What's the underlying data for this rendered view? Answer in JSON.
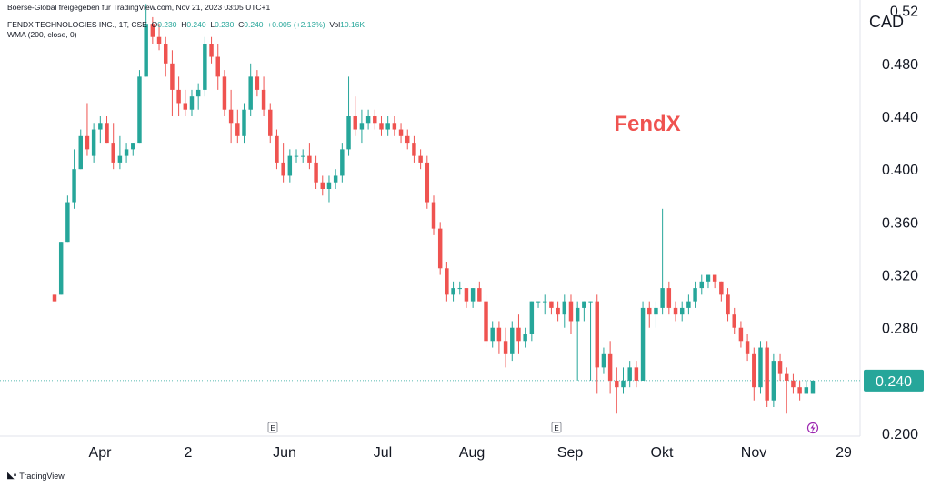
{
  "header": {
    "source": "Boerse-Global freigegeben für TradingView.com, Nov 21, 2023 03:05 UTC+1",
    "symbol": "FENDX TECHNOLOGIES INC., 1T, CSE",
    "open_label": "O",
    "open": "0.230",
    "high_label": "H",
    "high": "0.240",
    "low_label": "L",
    "low": "0.230",
    "close_label": "C",
    "close": "0.240",
    "change": "+0.005 (+2.13%)",
    "vol_label": "Vol",
    "vol": "10.16K",
    "indicator": "WMA (200, close, 0)"
  },
  "currency": "CAD",
  "brand": "TradingView",
  "colors": {
    "up": "#26a69a",
    "down": "#ef5350",
    "last_price_bg": "#26a69a",
    "watermark": "#ef5350"
  },
  "chart_data": {
    "type": "candlestick",
    "watermark": "FendX",
    "ylim": [
      0.198,
      0.528
    ],
    "y_ticks": [
      "0.200",
      "0.240",
      "0.280",
      "0.320",
      "0.360",
      "0.400",
      "0.440",
      "0.480",
      "0.52"
    ],
    "x_tick_labels": [
      "Apr",
      "2",
      "Jun",
      "Jul",
      "Aug",
      "Sep",
      "Okt",
      "Nov",
      "29"
    ],
    "last_price": "0.240",
    "event_markers": [
      "E",
      "E"
    ],
    "candles": [
      [
        0.305,
        0.305,
        0.3,
        0.3
      ],
      [
        0.305,
        0.345,
        0.305,
        0.345
      ],
      [
        0.345,
        0.38,
        0.345,
        0.375
      ],
      [
        0.375,
        0.415,
        0.37,
        0.4
      ],
      [
        0.4,
        0.43,
        0.4,
        0.425
      ],
      [
        0.425,
        0.45,
        0.41,
        0.415
      ],
      [
        0.41,
        0.435,
        0.405,
        0.43
      ],
      [
        0.43,
        0.44,
        0.42,
        0.435
      ],
      [
        0.435,
        0.44,
        0.42,
        0.42
      ],
      [
        0.42,
        0.435,
        0.4,
        0.405
      ],
      [
        0.405,
        0.425,
        0.4,
        0.41
      ],
      [
        0.41,
        0.42,
        0.405,
        0.415
      ],
      [
        0.415,
        0.42,
        0.41,
        0.42
      ],
      [
        0.42,
        0.475,
        0.42,
        0.47
      ],
      [
        0.47,
        0.525,
        0.47,
        0.51
      ],
      [
        0.51,
        0.515,
        0.495,
        0.5
      ],
      [
        0.5,
        0.51,
        0.49,
        0.495
      ],
      [
        0.495,
        0.5,
        0.47,
        0.48
      ],
      [
        0.48,
        0.49,
        0.44,
        0.46
      ],
      [
        0.46,
        0.47,
        0.44,
        0.45
      ],
      [
        0.45,
        0.46,
        0.44,
        0.445
      ],
      [
        0.445,
        0.46,
        0.44,
        0.455
      ],
      [
        0.455,
        0.465,
        0.445,
        0.46
      ],
      [
        0.46,
        0.5,
        0.455,
        0.495
      ],
      [
        0.495,
        0.5,
        0.48,
        0.485
      ],
      [
        0.485,
        0.495,
        0.46,
        0.47
      ],
      [
        0.47,
        0.475,
        0.44,
        0.445
      ],
      [
        0.445,
        0.46,
        0.42,
        0.435
      ],
      [
        0.435,
        0.445,
        0.42,
        0.425
      ],
      [
        0.425,
        0.45,
        0.42,
        0.445
      ],
      [
        0.445,
        0.48,
        0.44,
        0.47
      ],
      [
        0.47,
        0.475,
        0.455,
        0.46
      ],
      [
        0.46,
        0.47,
        0.44,
        0.445
      ],
      [
        0.445,
        0.45,
        0.42,
        0.425
      ],
      [
        0.425,
        0.43,
        0.4,
        0.405
      ],
      [
        0.405,
        0.42,
        0.39,
        0.395
      ],
      [
        0.395,
        0.415,
        0.39,
        0.41
      ],
      [
        0.41,
        0.415,
        0.405,
        0.41
      ],
      [
        0.41,
        0.415,
        0.405,
        0.41
      ],
      [
        0.41,
        0.42,
        0.4,
        0.405
      ],
      [
        0.405,
        0.41,
        0.385,
        0.39
      ],
      [
        0.39,
        0.395,
        0.38,
        0.385
      ],
      [
        0.385,
        0.395,
        0.375,
        0.39
      ],
      [
        0.39,
        0.4,
        0.385,
        0.395
      ],
      [
        0.395,
        0.42,
        0.39,
        0.415
      ],
      [
        0.415,
        0.47,
        0.41,
        0.44
      ],
      [
        0.44,
        0.455,
        0.425,
        0.43
      ],
      [
        0.43,
        0.445,
        0.42,
        0.435
      ],
      [
        0.435,
        0.445,
        0.43,
        0.44
      ],
      [
        0.44,
        0.445,
        0.43,
        0.435
      ],
      [
        0.435,
        0.44,
        0.425,
        0.43
      ],
      [
        0.43,
        0.44,
        0.425,
        0.435
      ],
      [
        0.435,
        0.44,
        0.425,
        0.43
      ],
      [
        0.43,
        0.435,
        0.42,
        0.425
      ],
      [
        0.425,
        0.43,
        0.415,
        0.42
      ],
      [
        0.42,
        0.425,
        0.405,
        0.41
      ],
      [
        0.41,
        0.415,
        0.4,
        0.405
      ],
      [
        0.405,
        0.41,
        0.37,
        0.375
      ],
      [
        0.375,
        0.38,
        0.35,
        0.355
      ],
      [
        0.355,
        0.36,
        0.32,
        0.325
      ],
      [
        0.325,
        0.33,
        0.3,
        0.305
      ],
      [
        0.305,
        0.315,
        0.3,
        0.31
      ],
      [
        0.31,
        0.315,
        0.305,
        0.31
      ],
      [
        0.31,
        0.31,
        0.295,
        0.3
      ],
      [
        0.3,
        0.31,
        0.295,
        0.31
      ],
      [
        0.31,
        0.315,
        0.3,
        0.3
      ],
      [
        0.3,
        0.305,
        0.265,
        0.27
      ],
      [
        0.27,
        0.285,
        0.265,
        0.28
      ],
      [
        0.28,
        0.285,
        0.26,
        0.27
      ],
      [
        0.27,
        0.28,
        0.25,
        0.26
      ],
      [
        0.26,
        0.285,
        0.255,
        0.28
      ],
      [
        0.28,
        0.29,
        0.26,
        0.27
      ],
      [
        0.27,
        0.28,
        0.265,
        0.275
      ],
      [
        0.275,
        0.3,
        0.27,
        0.3
      ],
      [
        0.3,
        0.3,
        0.295,
        0.3
      ],
      [
        0.3,
        0.305,
        0.29,
        0.3
      ],
      [
        0.3,
        0.3,
        0.29,
        0.295
      ],
      [
        0.295,
        0.3,
        0.285,
        0.29
      ],
      [
        0.29,
        0.305,
        0.28,
        0.3
      ],
      [
        0.3,
        0.305,
        0.275,
        0.285
      ],
      [
        0.285,
        0.3,
        0.24,
        0.295
      ],
      [
        0.295,
        0.3,
        0.285,
        0.3
      ],
      [
        0.3,
        0.3,
        0.24,
        0.3
      ],
      [
        0.3,
        0.305,
        0.23,
        0.25
      ],
      [
        0.25,
        0.265,
        0.245,
        0.26
      ],
      [
        0.26,
        0.27,
        0.23,
        0.24
      ],
      [
        0.24,
        0.25,
        0.215,
        0.235
      ],
      [
        0.235,
        0.25,
        0.23,
        0.24
      ],
      [
        0.24,
        0.255,
        0.235,
        0.25
      ],
      [
        0.25,
        0.255,
        0.235,
        0.24
      ],
      [
        0.24,
        0.3,
        0.24,
        0.295
      ],
      [
        0.295,
        0.3,
        0.28,
        0.29
      ],
      [
        0.29,
        0.3,
        0.28,
        0.295
      ],
      [
        0.295,
        0.37,
        0.29,
        0.31
      ],
      [
        0.31,
        0.315,
        0.29,
        0.295
      ],
      [
        0.295,
        0.3,
        0.285,
        0.29
      ],
      [
        0.29,
        0.3,
        0.285,
        0.295
      ],
      [
        0.295,
        0.305,
        0.29,
        0.3
      ],
      [
        0.3,
        0.315,
        0.295,
        0.31
      ],
      [
        0.31,
        0.32,
        0.305,
        0.315
      ],
      [
        0.315,
        0.32,
        0.31,
        0.32
      ],
      [
        0.32,
        0.32,
        0.31,
        0.315
      ],
      [
        0.315,
        0.315,
        0.3,
        0.305
      ],
      [
        0.305,
        0.31,
        0.285,
        0.29
      ],
      [
        0.29,
        0.295,
        0.275,
        0.28
      ],
      [
        0.28,
        0.285,
        0.265,
        0.27
      ],
      [
        0.27,
        0.275,
        0.255,
        0.26
      ],
      [
        0.26,
        0.265,
        0.225,
        0.235
      ],
      [
        0.235,
        0.27,
        0.23,
        0.265
      ],
      [
        0.265,
        0.27,
        0.22,
        0.225
      ],
      [
        0.225,
        0.26,
        0.22,
        0.255
      ],
      [
        0.255,
        0.26,
        0.24,
        0.245
      ],
      [
        0.245,
        0.25,
        0.215,
        0.24
      ],
      [
        0.24,
        0.245,
        0.23,
        0.235
      ],
      [
        0.235,
        0.24,
        0.225,
        0.23
      ],
      [
        0.23,
        0.24,
        0.23,
        0.235
      ],
      [
        0.23,
        0.24,
        0.23,
        0.24
      ]
    ]
  }
}
